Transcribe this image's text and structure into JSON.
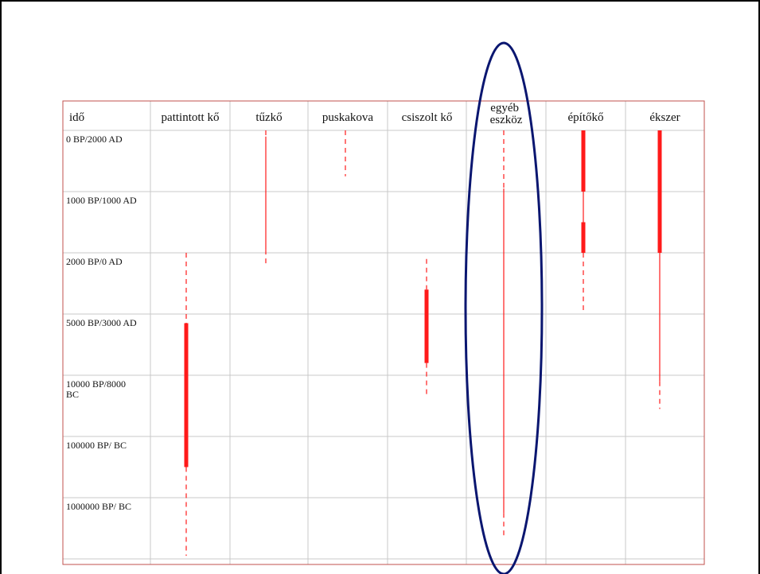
{
  "chart_data": {
    "type": "table",
    "columns": [
      "idő",
      "pattintott kő",
      "tűzkő",
      "puskakova",
      "csiszolt kő",
      "egyéb eszköz",
      "építőkő",
      "ékszer"
    ],
    "rows": [
      "0 BP/2000 AD",
      "1000 BP/1000 AD",
      "2000 BP/0 AD",
      "5000 BP/3000 AD",
      "10000 BP/8000 BC",
      "100000 BP/ BC",
      "1000000 BP/ BC"
    ],
    "ranges": [
      {
        "column": "pattintott kő",
        "segments": [
          {
            "from": 2.0,
            "to": 3.15,
            "style": "dashed"
          },
          {
            "from": 3.15,
            "to": 5.5,
            "style": "thick"
          },
          {
            "from": 5.5,
            "to": 6.95,
            "style": "dashed"
          }
        ]
      },
      {
        "column": "tűzkő",
        "segments": [
          {
            "from": 0.0,
            "to": 0.1,
            "style": "dashed"
          },
          {
            "from": 0.1,
            "to": 1.95,
            "style": "thin"
          },
          {
            "from": 1.95,
            "to": 2.2,
            "style": "dashed"
          }
        ]
      },
      {
        "column": "puskakova",
        "segments": [
          {
            "from": 0.0,
            "to": 0.75,
            "style": "dashed"
          }
        ]
      },
      {
        "column": "csiszolt kő",
        "segments": [
          {
            "from": 2.1,
            "to": 2.6,
            "style": "dashed"
          },
          {
            "from": 2.6,
            "to": 3.8,
            "style": "thick"
          },
          {
            "from": 3.8,
            "to": 4.35,
            "style": "dashed"
          }
        ]
      },
      {
        "column": "egyéb eszköz",
        "segments": [
          {
            "from": 0.0,
            "to": 0.95,
            "style": "dashed"
          },
          {
            "from": 0.95,
            "to": 6.25,
            "style": "thin"
          },
          {
            "from": 6.25,
            "to": 6.65,
            "style": "dashed"
          }
        ]
      },
      {
        "column": "építőkő",
        "segments": [
          {
            "from": 0.0,
            "to": 1.0,
            "style": "thick"
          },
          {
            "from": 1.0,
            "to": 1.5,
            "style": "thin"
          },
          {
            "from": 1.5,
            "to": 2.0,
            "style": "thick"
          },
          {
            "from": 2.0,
            "to": 2.95,
            "style": "dashed"
          }
        ]
      },
      {
        "column": "ékszer",
        "segments": [
          {
            "from": 0.0,
            "to": 2.0,
            "style": "thick"
          },
          {
            "from": 2.0,
            "to": 4.1,
            "style": "thin"
          },
          {
            "from": 4.1,
            "to": 4.55,
            "style": "dashed"
          }
        ]
      }
    ],
    "highlight_column": "egyéb eszköz",
    "colors": {
      "range": "#ff1a1a",
      "border": "#c0504d",
      "grid": "#c8c8c8",
      "highlight": "#0a1670"
    }
  }
}
